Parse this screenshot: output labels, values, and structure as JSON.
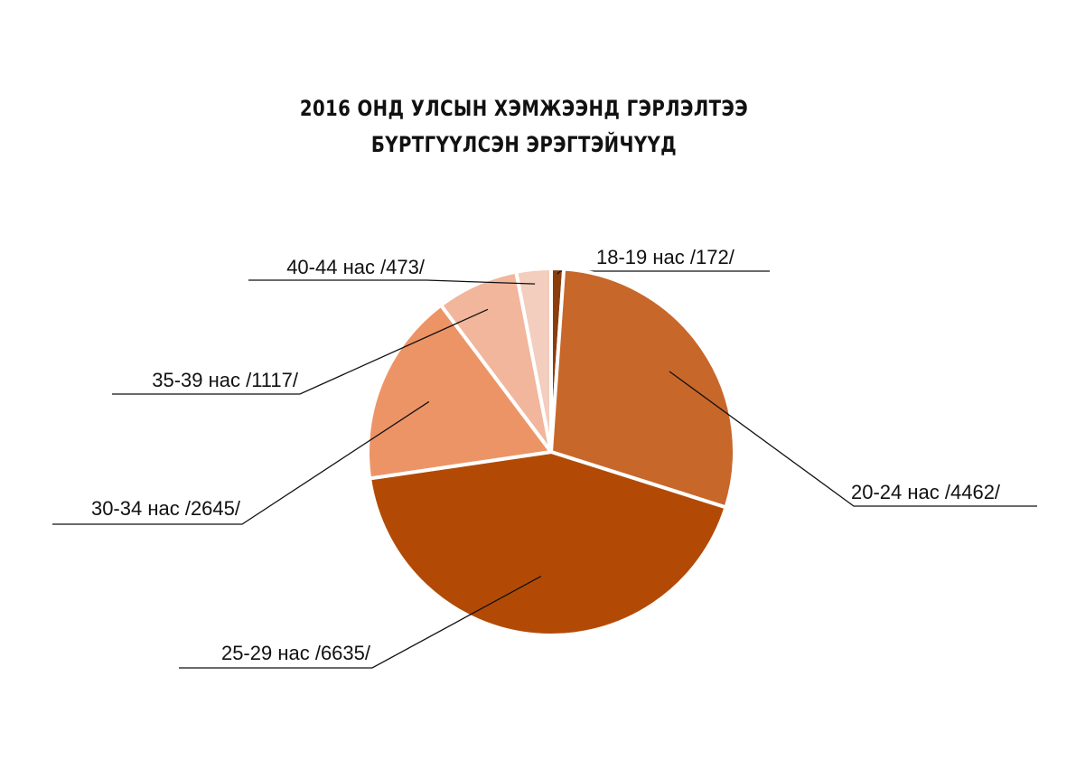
{
  "chart_data": {
    "type": "pie",
    "title_lines": [
      "2016 ОНД УЛСЫН ХЭМЖЭЭНД ГЭРЛЭЛТЭЭ",
      "БҮРТГҮҮЛСЭН ЭРЭГТЭЙЧҮҮД"
    ],
    "slices": [
      {
        "label": "18-19 нас /172/",
        "value": 172,
        "color": "#8c3d0c"
      },
      {
        "label": "20-24 нас /4462/",
        "value": 4462,
        "color": "#c8672a"
      },
      {
        "label": "25-29 нас /6635/",
        "value": 6635,
        "color": "#b24a06"
      },
      {
        "label": "30-34 нас /2645/",
        "value": 2645,
        "color": "#ed9466"
      },
      {
        "label": "35-39 нас /1117/",
        "value": 1117,
        "color": "#f1b69b"
      },
      {
        "label": "40-44 нас /473/",
        "value": 473,
        "color": "#f3cdbd"
      }
    ],
    "start": "12 o'clock",
    "direction": "clockwise",
    "legend": "none"
  }
}
